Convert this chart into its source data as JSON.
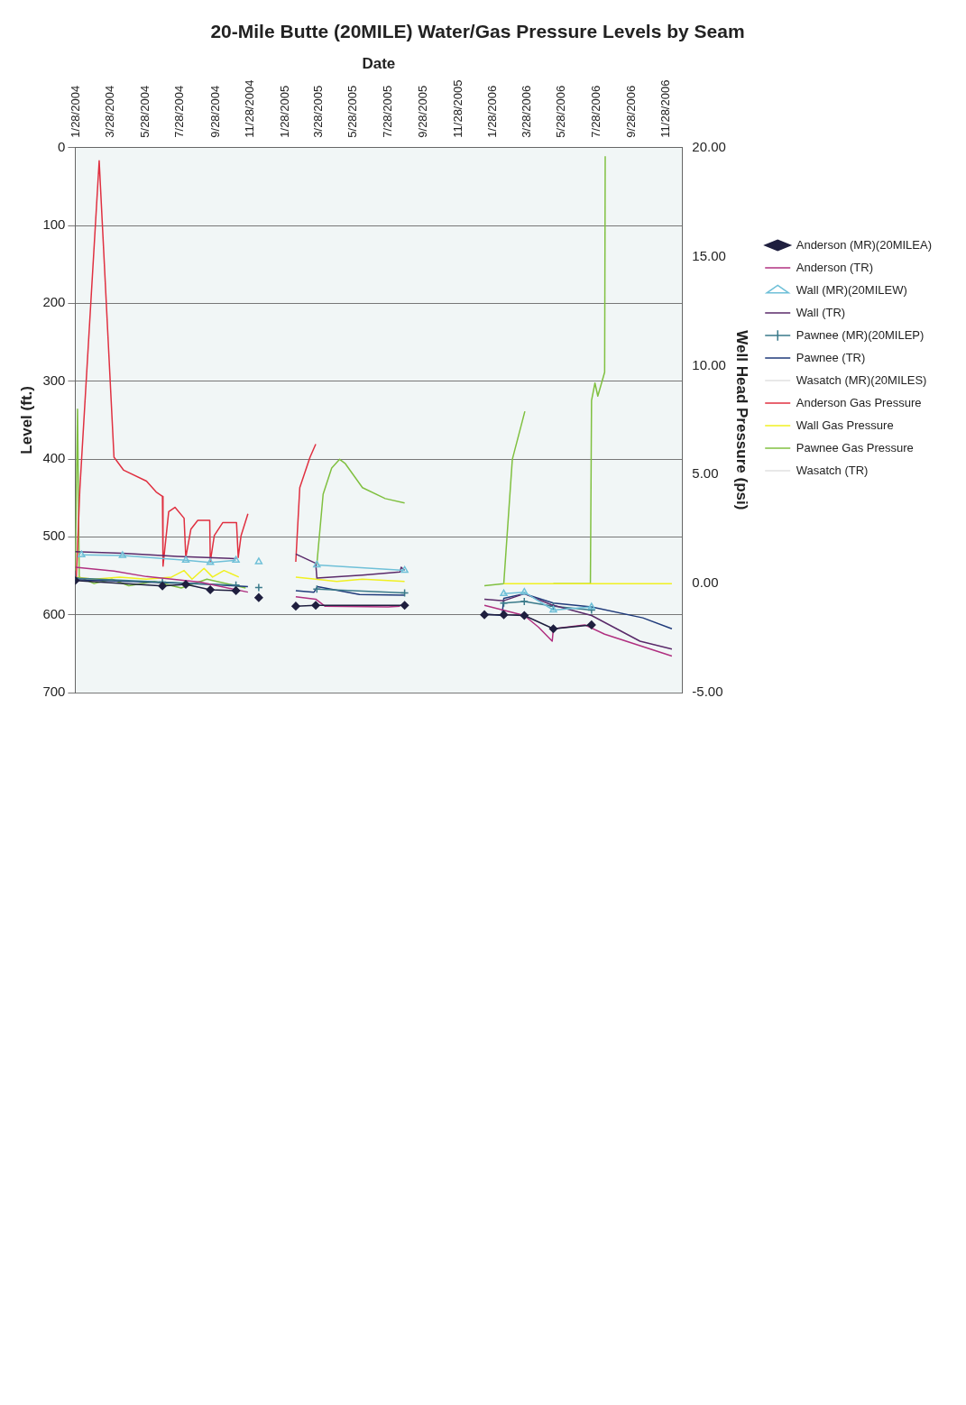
{
  "chart_data": {
    "type": "line",
    "title": "20-Mile Butte (20MILE) Water/Gas Pressure Levels by Seam",
    "xlabel": "Date",
    "ylabel": "Level (ft.)",
    "y2label": "Well Head Pressure (psi)",
    "xlim": [
      "2004-01-28",
      "2006-12-28"
    ],
    "xticks": [
      {
        "value": "2004-01-28",
        "label": "1/28/2004"
      },
      {
        "value": "2004-03-28",
        "label": "3/28/2004"
      },
      {
        "value": "2004-05-28",
        "label": "5/28/2004"
      },
      {
        "value": "2004-07-28",
        "label": "7/28/2004"
      },
      {
        "value": "2004-09-28",
        "label": "9/28/2004"
      },
      {
        "value": "2004-11-28",
        "label": "11/28/2004"
      },
      {
        "value": "2005-01-28",
        "label": "1/28/2005"
      },
      {
        "value": "2005-03-28",
        "label": "3/28/2005"
      },
      {
        "value": "2005-05-28",
        "label": "5/28/2005"
      },
      {
        "value": "2005-07-28",
        "label": "7/28/2005"
      },
      {
        "value": "2005-09-28",
        "label": "9/28/2005"
      },
      {
        "value": "2005-11-28",
        "label": "11/28/2005"
      },
      {
        "value": "2006-01-28",
        "label": "1/28/2006"
      },
      {
        "value": "2006-03-28",
        "label": "3/28/2006"
      },
      {
        "value": "2006-05-28",
        "label": "5/28/2006"
      },
      {
        "value": "2006-07-28",
        "label": "7/28/2006"
      },
      {
        "value": "2006-09-28",
        "label": "9/28/2006"
      },
      {
        "value": "2006-11-28",
        "label": "11/28/2006"
      }
    ],
    "ylim": [
      700,
      0
    ],
    "yticks": [
      0,
      100,
      200,
      300,
      400,
      500,
      600,
      700
    ],
    "y2lim": [
      -5,
      20
    ],
    "y2ticks": [
      {
        "value": -5,
        "label": "-5.00"
      },
      {
        "value": 0,
        "label": "0.00"
      },
      {
        "value": 5,
        "label": "5.00"
      },
      {
        "value": 10,
        "label": "10.00"
      },
      {
        "value": 15,
        "label": "15.00"
      },
      {
        "value": 20,
        "label": "20.00"
      }
    ],
    "grid": "y",
    "legend": "right",
    "line_style": "solid",
    "series": [
      {
        "name": "Anderson (MR)(20MILEA)",
        "color": "#1f1f3f",
        "marker": "diamond",
        "x": [
          "2004-01-28",
          "2004-06-29",
          "2004-08-09",
          "2004-09-21",
          "2004-11-05",
          "2004-11-25",
          "2004-12-15",
          "2005-01-20",
          "2005-02-18",
          "2005-03-25",
          "2005-08-28",
          "2005-11-01",
          "2006-01-15",
          "2006-02-18",
          "2006-03-26",
          "2006-05-16",
          "2006-07-22"
        ],
        "values": [
          556,
          563,
          561,
          568,
          569,
          null,
          578,
          null,
          589,
          588,
          588,
          null,
          600,
          600,
          601,
          618,
          613
        ]
      },
      {
        "name": "Anderson (TR)",
        "color": "#b03080",
        "x": [
          "2004-01-28",
          "2004-04-05",
          "2004-06-01",
          "2004-09-03",
          "2004-11-26",
          "2005-01-01",
          "2005-02-18",
          "2005-03-25",
          "2005-04-10",
          "2005-07-30",
          "2005-08-20",
          "2005-11-01",
          "2006-01-15",
          "2006-03-26",
          "2006-04-20",
          "2006-05-14",
          "2006-05-16",
          "2006-07-10",
          "2006-08-14",
          "2006-12-10"
        ],
        "values": [
          539,
          544,
          551,
          558,
          571,
          null,
          577,
          580,
          589,
          590,
          589,
          null,
          588,
          601,
          616,
          634,
          618,
          613,
          625,
          653
        ]
      },
      {
        "name": "Wall (MR)(20MILEW)",
        "color": "#6fc0d8",
        "marker": "triangle",
        "x": [
          "2004-02-08",
          "2004-04-20",
          "2004-08-09",
          "2004-09-21",
          "2004-11-05",
          "2004-11-25",
          "2004-12-15",
          "2005-01-20",
          "2005-03-27",
          "2005-08-28",
          "2005-11-01",
          "2006-02-18",
          "2006-03-26",
          "2006-05-16",
          "2006-07-22"
        ],
        "values": [
          523,
          524,
          530,
          533,
          530,
          null,
          532,
          null,
          536,
          543,
          null,
          573,
          571,
          594,
          590
        ]
      },
      {
        "name": "Wall (TR)",
        "color": "#5a2a6a",
        "x": [
          "2004-01-28",
          "2004-04-20",
          "2004-07-25",
          "2004-11-05",
          "2005-01-01",
          "2005-02-18",
          "2005-03-25",
          "2005-03-27",
          "2005-06-15",
          "2005-08-20",
          "2005-08-22",
          "2005-08-28",
          "2005-11-01",
          "2006-01-15",
          "2006-02-18",
          "2006-03-26",
          "2006-05-12",
          "2006-07-22",
          "2006-10-15",
          "2006-12-10"
        ],
        "values": [
          519,
          521,
          525,
          528,
          null,
          522,
          534,
          553,
          549,
          545,
          539,
          543,
          null,
          580,
          582,
          573,
          587,
          601,
          634,
          644
        ]
      },
      {
        "name": "Pawnee (MR)(20MILEP)",
        "color": "#3a7a8a",
        "marker": "cross",
        "x": [
          "2004-01-28",
          "2004-06-29",
          "2004-11-05",
          "2004-11-25",
          "2004-12-15",
          "2005-01-20",
          "2005-03-27",
          "2005-08-28",
          "2005-11-01",
          "2006-02-18",
          "2006-03-26",
          "2006-05-16",
          "2006-07-22"
        ],
        "values": [
          553,
          558,
          562,
          null,
          565,
          null,
          567,
          572,
          null,
          585,
          583,
          589,
          594
        ]
      },
      {
        "name": "Pawnee (TR)",
        "color": "#1f3a7a",
        "x": [
          "2004-01-28",
          "2004-04-20",
          "2004-09-21",
          "2004-11-26",
          "2005-01-01",
          "2005-02-18",
          "2005-03-22",
          "2005-03-28",
          "2005-06-10",
          "2005-08-28",
          "2005-11-01",
          "2006-01-15",
          "2006-02-15",
          "2006-02-18",
          "2006-03-26",
          "2006-05-16",
          "2006-07-22",
          "2006-10-20",
          "2006-12-10"
        ],
        "values": [
          555,
          557,
          561,
          564,
          null,
          569,
          571,
          564,
          574,
          575,
          null,
          599,
          601,
          579,
          573,
          585,
          590,
          604,
          618
        ]
      },
      {
        "name": "Wasatch (MR)(20MILES)",
        "color": "#e0e0e0"
      },
      {
        "name": "Anderson Gas Pressure",
        "color": "#e03040",
        "axis": "y2",
        "x": [
          "2004-01-30",
          "2004-02-05",
          "2004-03-10",
          "2004-04-05",
          "2004-04-22",
          "2004-06-01",
          "2004-06-18",
          "2004-06-29",
          "2004-06-30",
          "2004-07-10",
          "2004-07-21",
          "2004-08-06",
          "2004-08-09",
          "2004-08-18",
          "2004-08-30",
          "2004-09-20",
          "2004-09-21",
          "2004-09-28",
          "2004-10-13",
          "2004-11-06",
          "2004-11-09",
          "2004-11-14",
          "2004-11-26",
          "2005-01-01",
          "2005-02-18",
          "2005-02-25",
          "2005-03-15",
          "2005-03-25"
        ],
        "values": [
          0.3,
          4.3,
          19.4,
          5.8,
          5.2,
          4.7,
          4.2,
          4.0,
          0.8,
          3.3,
          3.5,
          3.0,
          1.2,
          2.5,
          2.9,
          2.9,
          1.0,
          2.2,
          2.8,
          2.8,
          1.2,
          2.2,
          3.2,
          null,
          1.0,
          4.4,
          5.8,
          6.4
        ]
      },
      {
        "name": "Wall Gas Pressure",
        "color": "#f0f020",
        "axis": "y2",
        "x": [
          "2004-01-28",
          "2004-03-01",
          "2004-04-15",
          "2004-06-01",
          "2004-07-15",
          "2004-08-06",
          "2004-08-20",
          "2004-09-10",
          "2004-09-25",
          "2004-10-15",
          "2004-11-10",
          "2005-01-01",
          "2005-02-18",
          "2005-03-25",
          "2005-05-01",
          "2005-06-15",
          "2005-08-28",
          "2005-11-01",
          "2006-02-18",
          "2006-06-01",
          "2006-12-10"
        ],
        "values": [
          0.3,
          0.2,
          0.3,
          0.2,
          0.3,
          0.6,
          0.2,
          0.7,
          0.3,
          0.6,
          0.3,
          null,
          0.3,
          0.2,
          0.1,
          0.2,
          0.1,
          null,
          0.0,
          0.0,
          0.0
        ]
      },
      {
        "name": "Pawnee Gas Pressure",
        "color": "#80c040",
        "axis": "y2",
        "x": [
          "2004-01-28",
          "2004-02-01",
          "2004-02-04",
          "2004-03-01",
          "2004-04-01",
          "2004-05-01",
          "2004-06-15",
          "2004-08-01",
          "2004-09-15",
          "2004-11-22",
          "2005-01-01",
          "2005-03-27",
          "2005-04-07",
          "2005-04-22",
          "2005-05-06",
          "2005-05-16",
          "2005-06-15",
          "2005-07-25",
          "2005-08-28",
          "2005-11-01",
          "2006-01-15",
          "2006-02-18",
          "2006-03-05",
          "2006-03-27",
          "2006-04-20",
          "2006-05-16",
          "2006-07-20",
          "2006-07-22",
          "2006-07-28",
          "2006-08-02",
          "2006-08-14",
          "2006-08-15"
        ],
        "values": [
          0.6,
          8.0,
          0.3,
          0.0,
          0.2,
          -0.1,
          0.1,
          -0.2,
          0.2,
          -0.2,
          null,
          0.9,
          4.1,
          5.3,
          5.7,
          5.5,
          4.4,
          3.9,
          3.7,
          null,
          -0.1,
          0.0,
          5.7,
          7.9,
          null,
          0.0,
          0.0,
          8.4,
          9.2,
          8.6,
          9.7,
          19.6
        ]
      },
      {
        "name": "Wasatch (TR)",
        "color": "#e0e0e0"
      }
    ]
  }
}
